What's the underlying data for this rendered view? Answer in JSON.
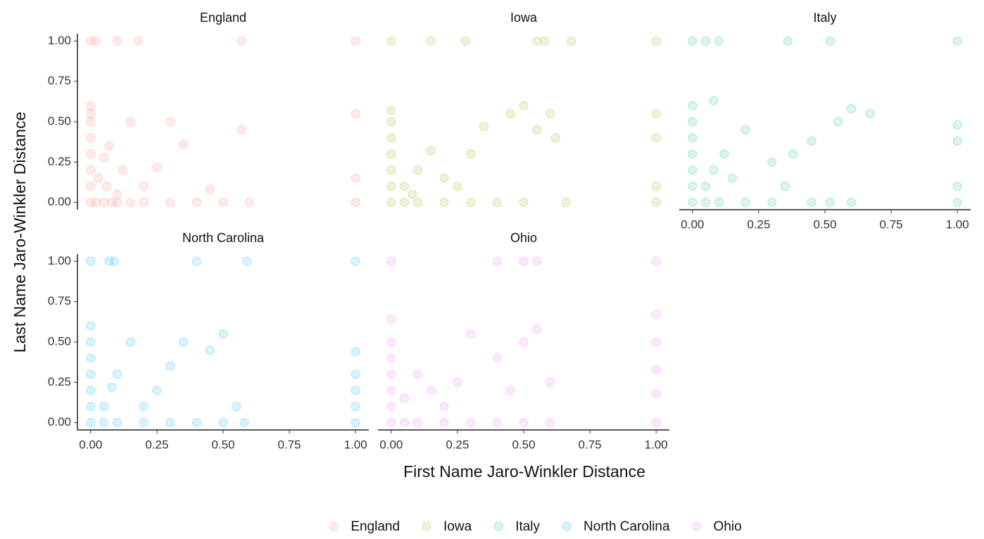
{
  "chart_data": {
    "type": "scatter",
    "xlabel": "First Name Jaro-Winkler Distance",
    "ylabel": "Last Name Jaro-Winkler Distance",
    "xlim": [
      -0.05,
      1.05
    ],
    "ylim": [
      -0.045,
      1.045
    ],
    "xticks": [
      {
        "value": 0,
        "label": "0.00"
      },
      {
        "value": 0.25,
        "label": "0.25"
      },
      {
        "value": 0.5,
        "label": "0.50"
      },
      {
        "value": 0.75,
        "label": "0.75"
      },
      {
        "value": 1,
        "label": "1.00"
      }
    ],
    "yticks": [
      {
        "value": 0,
        "label": "0.00"
      },
      {
        "value": 0.25,
        "label": "0.25"
      },
      {
        "value": 0.5,
        "label": "0.50"
      },
      {
        "value": 0.75,
        "label": "0.75"
      },
      {
        "value": 1,
        "label": "1.00"
      }
    ],
    "grid": false,
    "legend": "bottom",
    "facets": true,
    "opacity": 0.15,
    "series": [
      {
        "name": "England",
        "color": "#F8766D",
        "x": [
          0,
          0,
          0,
          0,
          0,
          0,
          0,
          0,
          0,
          0.02,
          0.05,
          0.08,
          0.1,
          0.15,
          0.2,
          0.3,
          0.4,
          0.5,
          0.6,
          1,
          1,
          1,
          1,
          0.03,
          0.06,
          0.1,
          0.12,
          0.2,
          0.25,
          0.3,
          0.45,
          0.57,
          0.07,
          0.15,
          0.05,
          0.02,
          0.35,
          0.1,
          0.18,
          0.57
        ],
        "values": [
          0,
          0.1,
          0.2,
          0.3,
          0.4,
          0.5,
          0.55,
          0.6,
          1,
          0,
          0,
          0,
          0,
          0,
          0,
          0,
          0,
          0,
          0,
          0,
          0.15,
          1,
          0.55,
          0.15,
          0.1,
          0.05,
          0.2,
          0.1,
          0.22,
          0.5,
          0.08,
          0.45,
          0.35,
          0.5,
          0.28,
          1,
          0.36,
          1,
          1,
          1
        ]
      },
      {
        "name": "Iowa",
        "color": "#A3A500",
        "x": [
          0,
          0,
          0,
          0,
          0,
          0,
          0,
          0,
          0.05,
          0.1,
          0.2,
          0.3,
          0.4,
          0.5,
          0.66,
          1,
          1,
          1,
          1,
          1,
          0.05,
          0.1,
          0.15,
          0.2,
          0.25,
          0.3,
          0.35,
          0.45,
          0.5,
          0.55,
          0.6,
          0.62,
          0.15,
          0.28,
          0.55,
          0.58,
          0.68,
          0.08
        ],
        "values": [
          0,
          0.1,
          0.2,
          0.3,
          0.4,
          0.5,
          0.57,
          1,
          0,
          0,
          0,
          0,
          0,
          0,
          0,
          0,
          0.1,
          0.4,
          0.55,
          1,
          0.1,
          0.2,
          0.32,
          0.15,
          0.1,
          0.3,
          0.47,
          0.55,
          0.6,
          0.45,
          0.55,
          0.4,
          1,
          1,
          1,
          1,
          1,
          0.05
        ]
      },
      {
        "name": "Italy",
        "color": "#00BF7D",
        "x": [
          0,
          0,
          0,
          0,
          0,
          0,
          0,
          0,
          0.05,
          0.1,
          0.2,
          0.3,
          0.45,
          0.52,
          0.6,
          1,
          1,
          1,
          1,
          1,
          0.05,
          0.08,
          0.12,
          0.15,
          0.2,
          0.3,
          0.35,
          0.38,
          0.45,
          0.55,
          0.6,
          0.67,
          0.05,
          0.1,
          0.36,
          0.52,
          0.08
        ],
        "values": [
          0,
          0.1,
          0.2,
          0.3,
          0.4,
          0.5,
          0.6,
          1,
          0,
          0,
          0,
          0,
          0,
          0,
          0,
          0,
          0.1,
          0.38,
          0.48,
          1,
          0.1,
          0.2,
          0.3,
          0.15,
          0.45,
          0.25,
          0.1,
          0.3,
          0.38,
          0.5,
          0.58,
          0.55,
          1,
          1,
          1,
          1,
          0.63
        ]
      },
      {
        "name": "North Carolina",
        "color": "#00B0F6",
        "x": [
          0,
          0,
          0,
          0,
          0,
          0,
          0,
          0,
          0.05,
          0.1,
          0.2,
          0.3,
          0.4,
          0.5,
          0.58,
          1,
          1,
          1,
          1,
          1,
          1,
          0.05,
          0.08,
          0.1,
          0.15,
          0.2,
          0.25,
          0.3,
          0.35,
          0.45,
          0.5,
          0.55,
          0.07,
          0.09,
          0.4,
          0.59
        ],
        "values": [
          0,
          0.1,
          0.2,
          0.3,
          0.4,
          0.5,
          0.6,
          1,
          0,
          0,
          0,
          0,
          0,
          0,
          0,
          0,
          0.1,
          0.2,
          0.3,
          0.44,
          1,
          0.1,
          0.22,
          0.3,
          0.5,
          0.1,
          0.2,
          0.35,
          0.5,
          0.45,
          0.55,
          0.1,
          1,
          1,
          1,
          1
        ]
      },
      {
        "name": "Ohio",
        "color": "#E76BF3",
        "x": [
          0,
          0,
          0,
          0,
          0,
          0,
          0,
          0,
          0.05,
          0.1,
          0.2,
          0.3,
          0.4,
          0.5,
          0.6,
          1,
          1,
          1,
          1,
          1,
          1,
          0.05,
          0.1,
          0.15,
          0.2,
          0.25,
          0.3,
          0.4,
          0.45,
          0.5,
          0.55,
          0.6,
          0.4,
          0.5,
          0.55
        ],
        "values": [
          0,
          0.1,
          0.2,
          0.3,
          0.4,
          0.5,
          0.64,
          1,
          0,
          0,
          0,
          0,
          0,
          0,
          0,
          0,
          0.18,
          0.33,
          0.5,
          0.67,
          1,
          0.15,
          0.3,
          0.2,
          0.1,
          0.25,
          0.55,
          0.4,
          0.2,
          0.5,
          0.58,
          0.25,
          1,
          1,
          1
        ]
      }
    ]
  }
}
